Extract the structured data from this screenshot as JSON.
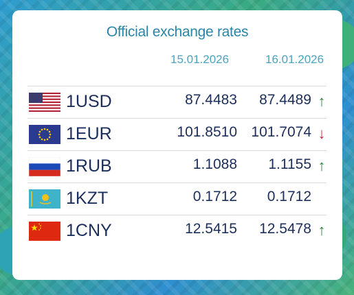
{
  "title": "Official exchange rates",
  "dates": [
    "15.01.2026",
    "16.01.2026"
  ],
  "rates": [
    {
      "code": "1USD",
      "v1": "87.4483",
      "v2": "87.4489",
      "trend": "up",
      "flag": "us-flag-icon"
    },
    {
      "code": "1EUR",
      "v1": "101.8510",
      "v2": "101.7074",
      "trend": "down",
      "flag": "eu-flag-icon"
    },
    {
      "code": "1RUB",
      "v1": "1.1088",
      "v2": "1.1155",
      "trend": "up",
      "flag": "ru-flag-icon"
    },
    {
      "code": "1KZT",
      "v1": "0.1712",
      "v2": "0.1712",
      "trend": "none",
      "flag": "kz-flag-icon"
    },
    {
      "code": "1CNY",
      "v1": "12.5415",
      "v2": "12.5478",
      "trend": "up",
      "flag": "cn-flag-icon"
    }
  ],
  "arrows": {
    "up": "↑",
    "down": "↓",
    "none": ""
  },
  "colors": {
    "up": "#2f8a3e",
    "down": "#c0283a",
    "text": "#1c2e5c",
    "accent": "#2a86a8"
  }
}
